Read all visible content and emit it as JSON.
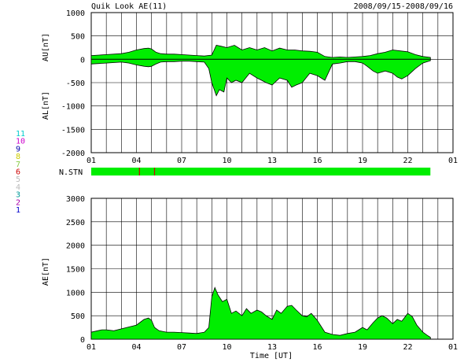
{
  "header": {
    "title": "Quik Look AE(11)",
    "date_range": "2008/09/15-2008/09/16"
  },
  "stations_legend": [
    {
      "label": "11",
      "color": "#00cccc"
    },
    {
      "label": "10",
      "color": "#cc00cc"
    },
    {
      "label": "9",
      "color": "#0000aa"
    },
    {
      "label": "8",
      "color": "#cccc00"
    },
    {
      "label": "7",
      "color": "#88cc44"
    },
    {
      "label": "6",
      "color": "#cc0000"
    },
    {
      "label": "5",
      "color": "#bbbbbb"
    },
    {
      "label": "4",
      "color": "#bbbbbb"
    },
    {
      "label": "3",
      "color": "#009999"
    },
    {
      "label": "2",
      "color": "#aa00aa"
    },
    {
      "label": "1",
      "color": "#0000cc"
    }
  ],
  "chart_data": [
    {
      "type": "area",
      "panel": "AU/AL",
      "ylabel_top": "AU[nT]",
      "ylabel_bottom": "AL[nT]",
      "ylim": [
        -2000,
        1000
      ],
      "yticks": [
        1000,
        500,
        0,
        -500,
        -1000,
        -1500,
        -2000
      ],
      "xlim": [
        0,
        24
      ],
      "xtick_labels": [
        "01",
        "04",
        "07",
        "10",
        "13",
        "16",
        "19",
        "22",
        "01"
      ],
      "fill_color": "#00ee00",
      "au": {
        "x": [
          0,
          1,
          2,
          2.5,
          3,
          3.5,
          3.8,
          4,
          4.3,
          4.6,
          5,
          5.5,
          6,
          6.5,
          7,
          7.5,
          8,
          8.3,
          8.6,
          9,
          9.5,
          10,
          10.5,
          11,
          11.5,
          12,
          12.5,
          13,
          13.5,
          14,
          14.5,
          15,
          15.5,
          16,
          16.5,
          17,
          17.5,
          18,
          18.5,
          19,
          19.5,
          20,
          20.5,
          21,
          21.5,
          22,
          22.5
        ],
        "values": [
          80,
          100,
          120,
          150,
          200,
          230,
          240,
          220,
          150,
          120,
          110,
          110,
          100,
          90,
          80,
          70,
          90,
          300,
          280,
          250,
          300,
          200,
          250,
          200,
          250,
          180,
          240,
          200,
          200,
          180,
          170,
          150,
          60,
          40,
          50,
          40,
          50,
          60,
          80,
          120,
          150,
          200,
          180,
          160,
          100,
          60,
          40
        ]
      },
      "al": {
        "x": [
          0,
          1,
          2,
          2.5,
          3,
          3.5,
          3.8,
          4,
          4.3,
          4.6,
          5,
          5.5,
          6,
          6.5,
          7,
          7.5,
          7.8,
          8,
          8.3,
          8.5,
          8.8,
          9,
          9.3,
          9.6,
          10,
          10.5,
          11,
          11.3,
          11.6,
          12,
          12.5,
          13,
          13.3,
          13.6,
          14,
          14.5,
          15,
          15.5,
          16,
          16.5,
          17,
          17.5,
          18,
          18.3,
          18.7,
          19,
          19.5,
          20,
          20.3,
          20.6,
          21,
          21.5,
          22,
          22.5
        ],
        "values": [
          -100,
          -80,
          -60,
          -80,
          -120,
          -150,
          -160,
          -150,
          -100,
          -60,
          -50,
          -50,
          -40,
          -40,
          -50,
          -60,
          -200,
          -500,
          -780,
          -650,
          -700,
          -400,
          -500,
          -450,
          -500,
          -300,
          -400,
          -450,
          -500,
          -550,
          -400,
          -450,
          -600,
          -550,
          -500,
          -300,
          -350,
          -450,
          -100,
          -80,
          -50,
          -50,
          -80,
          -150,
          -250,
          -300,
          -250,
          -300,
          -380,
          -420,
          -350,
          -200,
          -80,
          -30
        ]
      }
    },
    {
      "type": "bar",
      "panel": "N.STN",
      "label": "N.STN",
      "xlim": [
        0,
        24
      ],
      "extent": [
        0,
        22.5
      ],
      "fill_color": "#00ee00",
      "marker_color": "#cc0000",
      "markers": [
        3.2,
        4.2
      ]
    },
    {
      "type": "area",
      "panel": "AE",
      "ylabel": "AE[nT]",
      "ylim": [
        0,
        3000
      ],
      "yticks": [
        3000,
        2500,
        2000,
        1500,
        1000,
        500,
        0
      ],
      "xlim": [
        0,
        24
      ],
      "xtick_labels": [
        "01",
        "04",
        "07",
        "10",
        "13",
        "16",
        "19",
        "22",
        "01"
      ],
      "xlabel": "Time [UT]",
      "fill_color": "#00ee00",
      "x": [
        0,
        0.7,
        1,
        1.5,
        2,
        2.5,
        3,
        3.5,
        3.8,
        4,
        4.2,
        4.5,
        5,
        5.5,
        6,
        6.5,
        7,
        7.5,
        7.8,
        8,
        8.2,
        8.4,
        8.7,
        9,
        9.3,
        9.6,
        10,
        10.3,
        10.6,
        11,
        11.3,
        11.6,
        12,
        12.3,
        12.6,
        13,
        13.3,
        13.6,
        14,
        14.3,
        14.6,
        15,
        15.5,
        16,
        16.5,
        17,
        17.5,
        18,
        18.3,
        18.7,
        19,
        19.3,
        19.6,
        20,
        20.3,
        20.6,
        21,
        21.3,
        21.6,
        22,
        22.3,
        22.5
      ],
      "values": [
        150,
        200,
        200,
        180,
        220,
        260,
        300,
        420,
        450,
        400,
        250,
        180,
        150,
        150,
        140,
        130,
        120,
        150,
        250,
        900,
        1100,
        950,
        800,
        850,
        550,
        600,
        500,
        650,
        550,
        620,
        580,
        500,
        420,
        620,
        550,
        700,
        720,
        620,
        500,
        480,
        550,
        400,
        150,
        100,
        80,
        120,
        150,
        250,
        200,
        350,
        450,
        500,
        450,
        330,
        420,
        380,
        550,
        480,
        300,
        150,
        80,
        40
      ]
    }
  ]
}
